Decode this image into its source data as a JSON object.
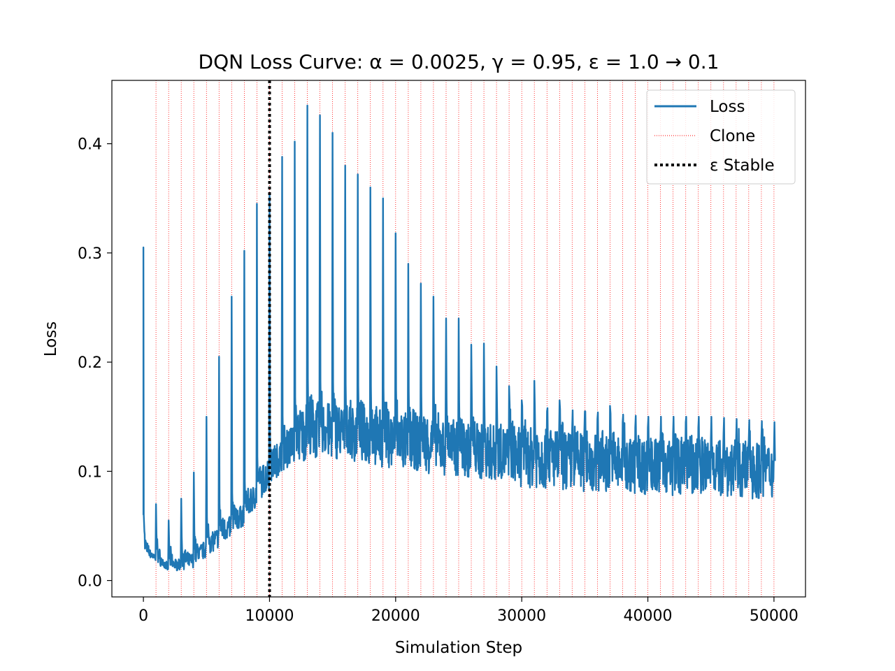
{
  "chart_data": {
    "type": "line",
    "title": "DQN Loss Curve: α = 0.0025, γ = 0.95, ε = 1.0 → 0.1",
    "xlabel": "Simulation Step",
    "ylabel": "Loss",
    "xlim": [
      -2500,
      52500
    ],
    "ylim": [
      -0.015,
      0.458
    ],
    "xticks": [
      0,
      10000,
      20000,
      30000,
      40000,
      50000
    ],
    "yticks": [
      0.0,
      0.1,
      0.2,
      0.3,
      0.4
    ],
    "xtick_labels": [
      "0",
      "10000",
      "20000",
      "30000",
      "40000",
      "50000"
    ],
    "ytick_labels": [
      "0.0",
      "0.1",
      "0.2",
      "0.3",
      "0.4"
    ],
    "grid": false,
    "legend": {
      "position": "top-right",
      "entries": [
        {
          "label": "Loss",
          "style": "solid",
          "color": "#1f77b4"
        },
        {
          "label": "Clone",
          "style": "dotted-thin",
          "color": "#ff0000"
        },
        {
          "label": "ε Stable",
          "style": "dotted-thick",
          "color": "#000000"
        }
      ]
    },
    "series": [
      {
        "name": "Loss",
        "color": "#1f77b4",
        "x_range": [
          0,
          50000
        ],
        "initial_spike": 0.305,
        "clone_peaks": [
          {
            "x": 1000,
            "y": 0.07
          },
          {
            "x": 2000,
            "y": 0.055
          },
          {
            "x": 3000,
            "y": 0.075
          },
          {
            "x": 4000,
            "y": 0.099
          },
          {
            "x": 5000,
            "y": 0.15
          },
          {
            "x": 6000,
            "y": 0.205
          },
          {
            "x": 7000,
            "y": 0.26
          },
          {
            "x": 8000,
            "y": 0.302
          },
          {
            "x": 9000,
            "y": 0.345
          },
          {
            "x": 10000,
            "y": 0.355
          },
          {
            "x": 11000,
            "y": 0.388
          },
          {
            "x": 12000,
            "y": 0.402
          },
          {
            "x": 13000,
            "y": 0.435
          },
          {
            "x": 14000,
            "y": 0.426
          },
          {
            "x": 15000,
            "y": 0.41
          },
          {
            "x": 16000,
            "y": 0.38
          },
          {
            "x": 17000,
            "y": 0.372
          },
          {
            "x": 18000,
            "y": 0.36
          },
          {
            "x": 19000,
            "y": 0.35
          },
          {
            "x": 20000,
            "y": 0.318
          },
          {
            "x": 21000,
            "y": 0.29
          },
          {
            "x": 22000,
            "y": 0.272
          },
          {
            "x": 23000,
            "y": 0.26
          },
          {
            "x": 24000,
            "y": 0.24
          },
          {
            "x": 25000,
            "y": 0.24
          },
          {
            "x": 26000,
            "y": 0.216
          },
          {
            "x": 27000,
            "y": 0.217
          },
          {
            "x": 28000,
            "y": 0.196
          },
          {
            "x": 29000,
            "y": 0.178
          },
          {
            "x": 30000,
            "y": 0.165
          },
          {
            "x": 31000,
            "y": 0.183
          },
          {
            "x": 32000,
            "y": 0.155
          },
          {
            "x": 33000,
            "y": 0.165
          },
          {
            "x": 34000,
            "y": 0.14
          },
          {
            "x": 35000,
            "y": 0.155
          },
          {
            "x": 36000,
            "y": 0.148
          },
          {
            "x": 37000,
            "y": 0.16
          },
          {
            "x": 38000,
            "y": 0.145
          },
          {
            "x": 39000,
            "y": 0.14
          },
          {
            "x": 40000,
            "y": 0.14
          },
          {
            "x": 41000,
            "y": 0.13
          },
          {
            "x": 42000,
            "y": 0.135
          },
          {
            "x": 43000,
            "y": 0.145
          },
          {
            "x": 44000,
            "y": 0.14
          },
          {
            "x": 45000,
            "y": 0.13
          },
          {
            "x": 46000,
            "y": 0.135
          },
          {
            "x": 47000,
            "y": 0.13
          },
          {
            "x": 48000,
            "y": 0.128
          },
          {
            "x": 49000,
            "y": 0.13
          },
          {
            "x": 50000,
            "y": 0.12
          }
        ],
        "band_envelope": [
          {
            "x": 0,
            "low": 0.025,
            "high": 0.03
          },
          {
            "x": 2000,
            "low": 0.007,
            "high": 0.015
          },
          {
            "x": 4000,
            "low": 0.012,
            "high": 0.025
          },
          {
            "x": 6000,
            "low": 0.03,
            "high": 0.05
          },
          {
            "x": 8000,
            "low": 0.05,
            "high": 0.07
          },
          {
            "x": 10000,
            "low": 0.085,
            "high": 0.115
          },
          {
            "x": 11000,
            "low": 0.1,
            "high": 0.13
          },
          {
            "x": 13000,
            "low": 0.11,
            "high": 0.165
          },
          {
            "x": 16000,
            "low": 0.11,
            "high": 0.16
          },
          {
            "x": 20000,
            "low": 0.1,
            "high": 0.155
          },
          {
            "x": 25000,
            "low": 0.095,
            "high": 0.145
          },
          {
            "x": 30000,
            "low": 0.085,
            "high": 0.14
          },
          {
            "x": 35000,
            "low": 0.08,
            "high": 0.135
          },
          {
            "x": 40000,
            "low": 0.078,
            "high": 0.13
          },
          {
            "x": 45000,
            "low": 0.075,
            "high": 0.13
          },
          {
            "x": 50000,
            "low": 0.074,
            "high": 0.125
          }
        ]
      }
    ],
    "clone_lines": {
      "label": "Clone",
      "color": "#ff0000",
      "x": [
        1000,
        2000,
        3000,
        4000,
        5000,
        6000,
        7000,
        8000,
        9000,
        10000,
        11000,
        12000,
        13000,
        14000,
        15000,
        16000,
        17000,
        18000,
        19000,
        20000,
        21000,
        22000,
        23000,
        24000,
        25000,
        26000,
        27000,
        28000,
        29000,
        30000,
        31000,
        32000,
        33000,
        34000,
        35000,
        36000,
        37000,
        38000,
        39000,
        40000,
        41000,
        42000,
        43000,
        44000,
        45000,
        46000,
        47000,
        48000,
        49000,
        50000
      ]
    },
    "epsilon_stable": {
      "label": "ε Stable",
      "x": 10000,
      "color": "#000000"
    }
  }
}
